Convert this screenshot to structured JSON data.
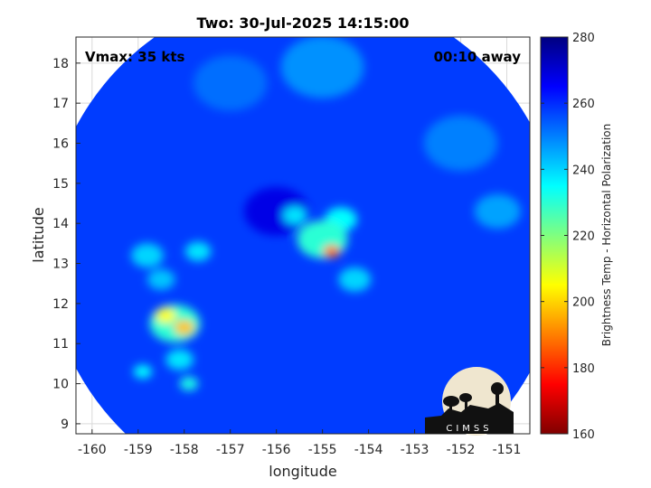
{
  "chart_data": {
    "type": "heatmap",
    "title": "Two: 30-Jul-2025 14:15:00",
    "xlabel": "longitude",
    "ylabel": "latitude",
    "xlim": [
      -160.35,
      -150.5
    ],
    "ylim": [
      8.75,
      18.65
    ],
    "xticks": [
      -160,
      -159,
      -158,
      -157,
      -156,
      -155,
      -154,
      -153,
      -152,
      -151
    ],
    "yticks": [
      9,
      10,
      11,
      12,
      13,
      14,
      15,
      16,
      17,
      18
    ],
    "grid": true,
    "annotations": {
      "top_left": "Vmax: 35 kts",
      "top_right": "00:10 away"
    },
    "colorbar": {
      "label": "Brightness Temp - Horizontal Polarization",
      "min": 160,
      "max": 280,
      "ticks": [
        160,
        180,
        200,
        220,
        240,
        260,
        280
      ]
    },
    "swath": {
      "center_lon": -155.4,
      "center_lat": 13.4,
      "radius_deg": 5.6
    },
    "background_temp": 258,
    "features": [
      {
        "lon": -154.8,
        "lat": 13.3,
        "temp": 188,
        "radius": 0.18
      },
      {
        "lon": -155.0,
        "lat": 13.6,
        "temp": 230,
        "radius": 0.55
      },
      {
        "lon": -154.6,
        "lat": 14.1,
        "temp": 235,
        "radius": 0.35
      },
      {
        "lon": -155.6,
        "lat": 14.2,
        "temp": 238,
        "radius": 0.25
      },
      {
        "lon": -154.3,
        "lat": 12.6,
        "temp": 240,
        "radius": 0.35
      },
      {
        "lon": -158.0,
        "lat": 11.4,
        "temp": 198,
        "radius": 0.22
      },
      {
        "lon": -158.4,
        "lat": 11.7,
        "temp": 205,
        "radius": 0.22
      },
      {
        "lon": -158.2,
        "lat": 11.5,
        "temp": 230,
        "radius": 0.55
      },
      {
        "lon": -158.1,
        "lat": 10.6,
        "temp": 238,
        "radius": 0.3
      },
      {
        "lon": -157.9,
        "lat": 10.0,
        "temp": 232,
        "radius": 0.2
      },
      {
        "lon": -158.9,
        "lat": 10.3,
        "temp": 235,
        "radius": 0.2
      },
      {
        "lon": -158.8,
        "lat": 13.2,
        "temp": 240,
        "radius": 0.35
      },
      {
        "lon": -157.7,
        "lat": 13.3,
        "temp": 238,
        "radius": 0.28
      },
      {
        "lon": -158.5,
        "lat": 12.6,
        "temp": 242,
        "radius": 0.3
      },
      {
        "lon": -155.0,
        "lat": 17.9,
        "temp": 248,
        "radius": 0.9
      },
      {
        "lon": -152.0,
        "lat": 16.0,
        "temp": 250,
        "radius": 0.8
      },
      {
        "lon": -151.2,
        "lat": 14.3,
        "temp": 246,
        "radius": 0.5
      },
      {
        "lon": -157.0,
        "lat": 17.5,
        "temp": 252,
        "radius": 0.8
      },
      {
        "lon": -156.0,
        "lat": 14.3,
        "temp": 268,
        "radius": 0.7
      }
    ]
  },
  "logo": {
    "text": "CIMSS"
  }
}
